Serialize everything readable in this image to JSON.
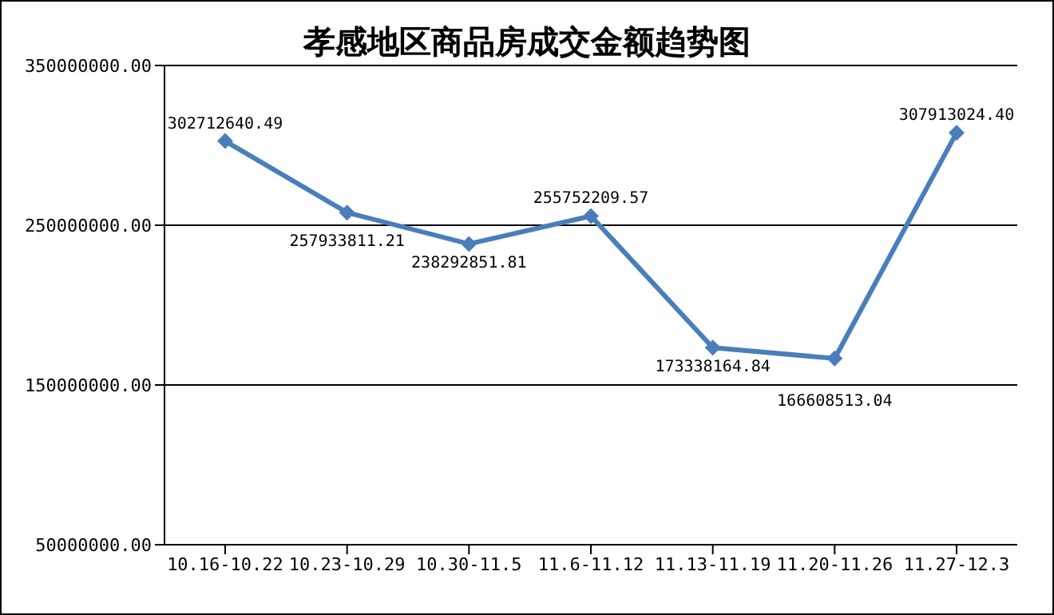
{
  "chart_data": {
    "type": "line",
    "title": "孝感地区商品房成交金额趋势图",
    "categories": [
      "10.16-10.22",
      "10.23-10.29",
      "10.30-11.5",
      "11.6-11.12",
      "11.13-11.19",
      "11.20-11.26",
      "11.27-12.3"
    ],
    "series": [
      {
        "color": "#4a7ebb",
        "values": [
          302712640.49,
          257933811.21,
          238292851.81,
          255752209.57,
          173338164.84,
          166608513.04,
          307913024.4
        ],
        "value_labels": [
          "302712640.49",
          "257933811.21",
          "238292851.81",
          "255752209.57",
          "173338164.84",
          "166608513.04",
          "307913024.40"
        ]
      }
    ],
    "ylim": [
      50000000,
      350000000
    ],
    "yticks": [
      {
        "value": 50000000,
        "label": "50000000.00"
      },
      {
        "value": 150000000,
        "label": "150000000.00"
      },
      {
        "value": 250000000,
        "label": "250000000.00"
      },
      {
        "value": 350000000,
        "label": "350000000.00"
      }
    ],
    "grid": "y",
    "legend": false,
    "marker": "diamond",
    "line_style": "solid"
  }
}
